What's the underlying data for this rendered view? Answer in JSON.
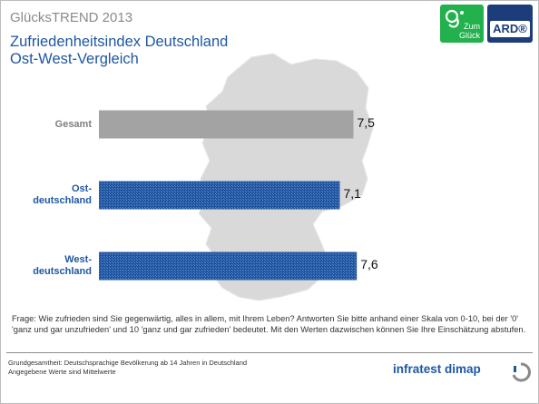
{
  "header": {
    "brand_title": "GlücksTREND 2013",
    "title_line1": "Zufriedenheitsindex Deutschland",
    "title_line2": "Ost-West-Vergleich"
  },
  "logos": {
    "zum_glueck_line1": "Zum",
    "zum_glueck_line2": "Glück",
    "ard": "ARD®"
  },
  "chart_data": {
    "type": "bar",
    "orientation": "horizontal",
    "categories": [
      {
        "lines": [
          "Gesamt"
        ],
        "value": 7.5,
        "value_label": "7,5",
        "color": "#a3a3a3",
        "label_color": "#7f7f7f"
      },
      {
        "lines": [
          "Ost-",
          "deutschland"
        ],
        "value": 7.1,
        "value_label": "7,1",
        "color": "#1f55a0",
        "label_color": "#1f57a4"
      },
      {
        "lines": [
          "West-",
          "deutschland"
        ],
        "value": 7.6,
        "value_label": "7,6",
        "color": "#1f55a0",
        "label_color": "#1f57a4"
      }
    ],
    "title": "Zufriedenheitsindex Deutschland Ost-West-Vergleich",
    "xlabel": "",
    "ylabel": "",
    "grid": false,
    "legend": "none"
  },
  "question": "Frage: Wie zufrieden sind Sie gegenwärtig, alles in allem, mit Ihrem Leben? Antworten Sie bitte anhand einer Skala von 0-10, bei der '0' 'ganz und gar unzufrieden' und 10 'ganz und gar zufrieden' bedeutet. Mit den Werten dazwischen können Sie Ihre Einschätzung abstufen.",
  "footnote": {
    "line1": "Grundgesamtheit: Deutschsprachige Bevölkerung ab 14 Jahren in Deutschland",
    "line2": "Angegebene Werte sind Mittelwerte"
  },
  "brand": "infratest dimap"
}
